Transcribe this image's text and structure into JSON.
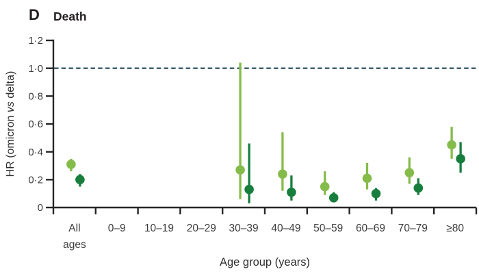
{
  "panel": {
    "letter": "D",
    "title": "Death"
  },
  "colors": {
    "background": "#ffffff",
    "axis": "#262626",
    "tick_label": "#3c3c3c",
    "reference": "#34586b",
    "series_light_green": "#85bb4a",
    "series_dark_green": "#177e3e"
  },
  "chart_data": {
    "type": "scatter",
    "title": "D Death",
    "xlabel": "Age group (years)",
    "ylabel": "HR (omicron vs delta)",
    "ylabel_parts": {
      "pre": "HR (omicron ",
      "italic": "vs",
      "post": " delta)"
    },
    "ylim": [
      0,
      1.2
    ],
    "grid": "off",
    "legend": "none",
    "y_ticks": [
      {
        "value": 0,
        "label": "0"
      },
      {
        "value": 0.2,
        "label": "0·2"
      },
      {
        "value": 0.4,
        "label": "0·4"
      },
      {
        "value": 0.6,
        "label": "0·6"
      },
      {
        "value": 0.8,
        "label": "0·8"
      },
      {
        "value": 1.0,
        "label": "1·0"
      },
      {
        "value": 1.2,
        "label": "1·2"
      }
    ],
    "reference_line": {
      "value": 1.0,
      "style": "dashed",
      "color": "#34586b"
    },
    "categories": [
      "All\nages",
      "0–9",
      "10–19",
      "20–29",
      "30–39",
      "40–49",
      "50–59",
      "60–69",
      "70–79",
      "≥80"
    ],
    "series": [
      {
        "name": "light green series",
        "color": "#85bb4a",
        "values": [
          {
            "est": 0.31,
            "lo": 0.26,
            "hi": 0.35
          },
          null,
          null,
          null,
          {
            "est": 0.27,
            "lo": 0.06,
            "hi": 1.04
          },
          {
            "est": 0.24,
            "lo": 0.12,
            "hi": 0.54
          },
          {
            "est": 0.15,
            "lo": 0.09,
            "hi": 0.26
          },
          {
            "est": 0.21,
            "lo": 0.13,
            "hi": 0.32
          },
          {
            "est": 0.25,
            "lo": 0.17,
            "hi": 0.36
          },
          {
            "est": 0.45,
            "lo": 0.35,
            "hi": 0.58
          }
        ]
      },
      {
        "name": "dark green series",
        "color": "#177e3e",
        "values": [
          {
            "est": 0.2,
            "lo": 0.15,
            "hi": 0.24
          },
          null,
          null,
          null,
          {
            "est": 0.13,
            "lo": 0.03,
            "hi": 0.46
          },
          {
            "est": 0.11,
            "lo": 0.05,
            "hi": 0.23
          },
          {
            "est": 0.07,
            "lo": 0.04,
            "hi": 0.11
          },
          {
            "est": 0.1,
            "lo": 0.05,
            "hi": 0.14
          },
          {
            "est": 0.14,
            "lo": 0.09,
            "hi": 0.21
          },
          {
            "est": 0.35,
            "lo": 0.25,
            "hi": 0.47
          }
        ]
      }
    ]
  }
}
